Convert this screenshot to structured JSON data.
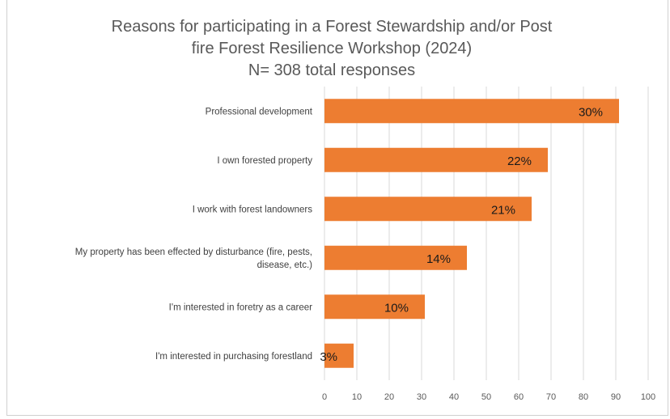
{
  "chart_data": {
    "type": "bar",
    "orientation": "horizontal",
    "title_lines": [
      "Reasons for participating in a Forest Stewardship and/or Post",
      "fire Forest Resilience Workshop (2024)",
      "N= 308 total responses"
    ],
    "categories": [
      [
        "Professional development"
      ],
      [
        "I own forested property"
      ],
      [
        "I work with forest landowners"
      ],
      [
        "My property has been effected by disturbance (fire, pests,",
        "disease, etc.)"
      ],
      [
        "I'm interested in foretry as a career"
      ],
      [
        "I'm interested in purchasing forestland"
      ]
    ],
    "values": [
      91,
      69,
      64,
      44,
      31,
      9
    ],
    "data_labels": [
      "30%",
      "22%",
      "21%",
      "14%",
      "10%",
      "3%"
    ],
    "xlim": [
      0,
      100
    ],
    "xticks": [
      "0",
      "10",
      "20",
      "30",
      "40",
      "50",
      "60",
      "70",
      "80",
      "90",
      "100"
    ],
    "grid": "vertical",
    "bar_color": "#ED7D31"
  }
}
